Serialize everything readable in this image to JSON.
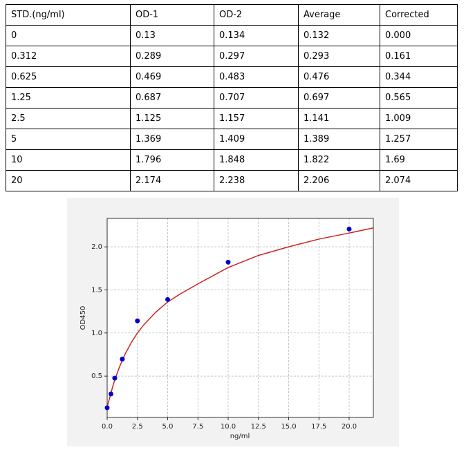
{
  "table": {
    "header": [
      "STD.(ng/ml)",
      "OD-1",
      "OD-2",
      "Average",
      "Corrected"
    ],
    "rows": [
      [
        "0",
        "0.13",
        "0.134",
        "0.132",
        "0.000"
      ],
      [
        "0.312",
        "0.289",
        "0.297",
        "0.293",
        "0.161"
      ],
      [
        "0.625",
        "0.469",
        "0.483",
        "0.476",
        "0.344"
      ],
      [
        "1.25",
        "0.687",
        "0.707",
        "0.697",
        "0.565"
      ],
      [
        "2.5",
        "1.125",
        "1.157",
        "1.141",
        "1.009"
      ],
      [
        "5",
        "1.369",
        "1.409",
        "1.389",
        "1.257"
      ],
      [
        "10",
        "1.796",
        "1.848",
        "1.822",
        "1.69"
      ],
      [
        "20",
        "2.174",
        "2.238",
        "2.206",
        "2.074"
      ]
    ]
  },
  "chart_data": {
    "type": "scatter",
    "xlabel": "ng/ml",
    "ylabel": "OD450",
    "xlim": [
      0,
      22
    ],
    "ylim": [
      0.02,
      2.33
    ],
    "xticks": [
      {
        "value": 0,
        "label": "0.0"
      },
      2.5,
      {
        "value": 5,
        "label": "5.0"
      },
      7.5,
      {
        "value": 10,
        "label": "10.0"
      },
      12.5,
      {
        "value": 15,
        "label": "15.0"
      },
      17.5,
      {
        "value": 20,
        "label": "20.0"
      }
    ],
    "yticks": [
      0.5,
      {
        "value": 1,
        "label": "1.0"
      },
      1.5,
      {
        "value": 2,
        "label": "2.0"
      }
    ],
    "grid": true,
    "series": [
      {
        "type": "scatter",
        "color": "#0000cc",
        "x": [
          0,
          0.312,
          0.625,
          1.25,
          2.5,
          5,
          10,
          20
        ],
        "values": [
          0.132,
          0.293,
          0.476,
          0.697,
          1.141,
          1.389,
          1.822,
          2.206
        ]
      },
      {
        "type": "line",
        "color": "#cc2222",
        "x": [
          0,
          0.5,
          1,
          1.5,
          2,
          2.5,
          3,
          4,
          5,
          6,
          7.5,
          10,
          12.5,
          15,
          17.5,
          20,
          22
        ],
        "values": [
          0.14,
          0.4,
          0.6,
          0.76,
          0.89,
          1.0,
          1.09,
          1.24,
          1.36,
          1.45,
          1.57,
          1.76,
          1.9,
          2.0,
          2.09,
          2.16,
          2.22
        ]
      }
    ]
  }
}
